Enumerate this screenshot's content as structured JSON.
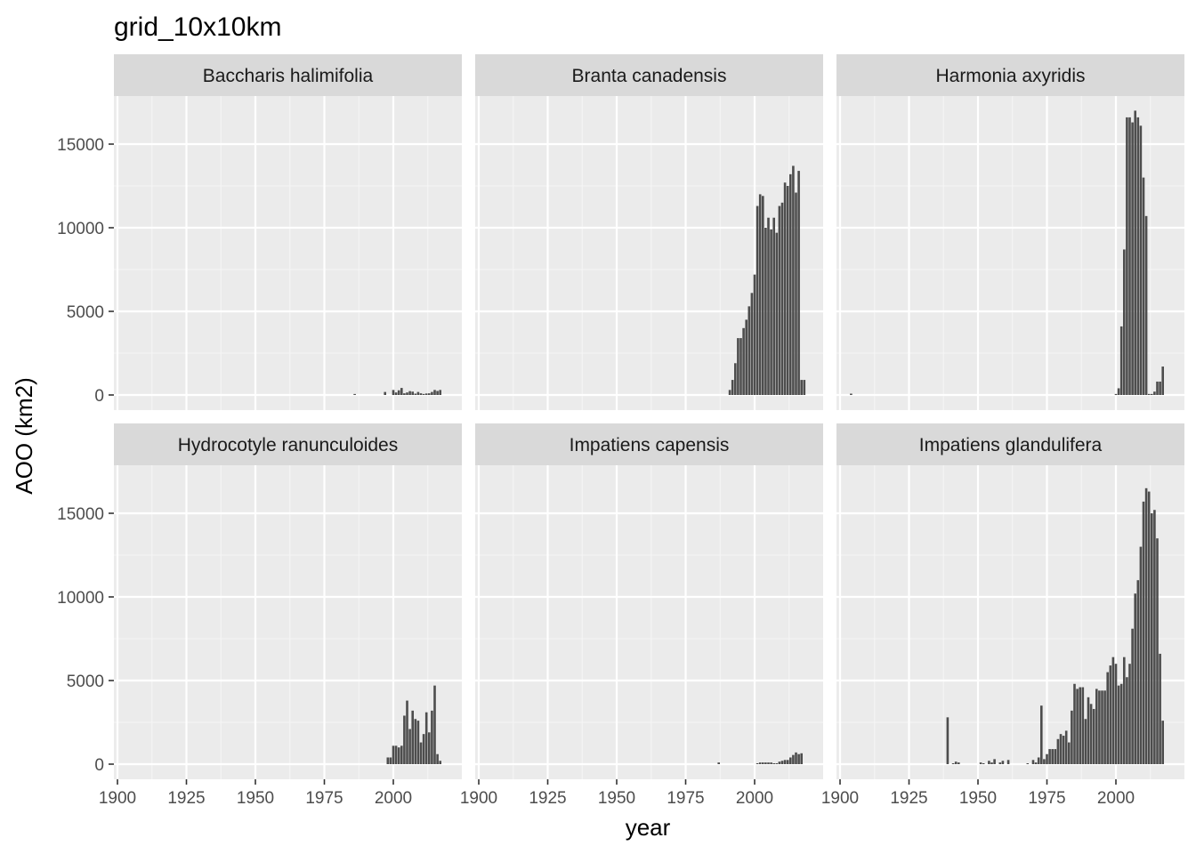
{
  "chart_data": {
    "type": "bar",
    "title": "grid_10x10km",
    "xlabel": "year",
    "ylabel": "AOO (km2)",
    "xlim": [
      1900,
      2020
    ],
    "ylim": [
      0,
      17000
    ],
    "xticks": [
      1900,
      1925,
      1950,
      1975,
      2000
    ],
    "yticks": [
      0,
      5000,
      10000,
      15000
    ],
    "grid": true,
    "layout": "2 rows x 3 columns, shared axes",
    "bar_color": "#4d4d4d",
    "panel_background": "#ebebeb",
    "strip_background": "#d9d9d9",
    "panels": [
      {
        "name": "Baccharis halimifolia",
        "x": [
          1986,
          1997,
          2000,
          2001,
          2002,
          2003,
          2004,
          2005,
          2006,
          2007,
          2008,
          2009,
          2010,
          2011,
          2012,
          2013,
          2014,
          2015,
          2016,
          2017
        ],
        "y": [
          60,
          180,
          300,
          150,
          280,
          420,
          100,
          150,
          230,
          200,
          80,
          180,
          100,
          60,
          90,
          100,
          180,
          300,
          240,
          300
        ]
      },
      {
        "name": "Branta canadensis",
        "x": [
          1991,
          1992,
          1993,
          1994,
          1995,
          1996,
          1997,
          1998,
          1999,
          2000,
          2001,
          2002,
          2003,
          2004,
          2005,
          2006,
          2007,
          2008,
          2009,
          2010,
          2011,
          2012,
          2013,
          2014,
          2015,
          2016,
          2017,
          2018
        ],
        "y": [
          300,
          900,
          1900,
          3400,
          3400,
          4000,
          4500,
          5300,
          6100,
          7200,
          11300,
          12000,
          11900,
          10000,
          10600,
          9900,
          10600,
          9700,
          11300,
          11500,
          12700,
          12500,
          13200,
          13700,
          12100,
          13400,
          900,
          900
        ]
      },
      {
        "name": "Harmonia axyridis",
        "x": [
          1904,
          2000,
          2001,
          2002,
          2003,
          2004,
          2005,
          2006,
          2007,
          2008,
          2009,
          2010,
          2011,
          2012,
          2013,
          2014,
          2015,
          2016,
          2017
        ],
        "y": [
          80,
          60,
          400,
          4100,
          8700,
          16600,
          16600,
          16300,
          17000,
          16600,
          16100,
          13000,
          10700,
          60,
          60,
          200,
          800,
          800,
          1700
        ]
      },
      {
        "name": "Hydrocotyle ranunculoides",
        "x": [
          1998,
          1999,
          2000,
          2001,
          2002,
          2003,
          2004,
          2005,
          2006,
          2007,
          2008,
          2009,
          2010,
          2011,
          2012,
          2013,
          2014,
          2015,
          2016,
          2017
        ],
        "y": [
          400,
          400,
          1100,
          1100,
          1000,
          1100,
          2900,
          3800,
          2100,
          3200,
          2700,
          2600,
          1300,
          1800,
          3100,
          1900,
          3200,
          4700,
          600,
          200
        ]
      },
      {
        "name": "Impatiens capensis",
        "x": [
          1987,
          2001,
          2002,
          2003,
          2004,
          2005,
          2006,
          2007,
          2008,
          2009,
          2010,
          2011,
          2012,
          2013,
          2014,
          2015,
          2016,
          2017
        ],
        "y": [
          100,
          50,
          100,
          100,
          100,
          100,
          100,
          50,
          50,
          150,
          200,
          250,
          250,
          400,
          550,
          700,
          600,
          650
        ]
      },
      {
        "name": "Impatiens glandulifera",
        "x": [
          1939,
          1941,
          1942,
          1943,
          1951,
          1952,
          1954,
          1955,
          1956,
          1958,
          1959,
          1961,
          1968,
          1970,
          1971,
          1972,
          1973,
          1974,
          1975,
          1976,
          1977,
          1978,
          1979,
          1980,
          1981,
          1982,
          1983,
          1984,
          1985,
          1986,
          1987,
          1988,
          1989,
          1990,
          1991,
          1992,
          1993,
          1994,
          1995,
          1996,
          1997,
          1998,
          1999,
          2000,
          2001,
          2002,
          2003,
          2004,
          2005,
          2006,
          2007,
          2008,
          2009,
          2010,
          2011,
          2012,
          2013,
          2014,
          2015,
          2016,
          2017
        ],
        "y": [
          2800,
          50,
          150,
          100,
          100,
          50,
          200,
          100,
          300,
          100,
          200,
          250,
          50,
          250,
          100,
          400,
          3500,
          300,
          600,
          900,
          900,
          900,
          1500,
          1800,
          1700,
          2000,
          1300,
          3200,
          4800,
          4500,
          4600,
          4600,
          2700,
          4000,
          3600,
          3300,
          4500,
          4400,
          4400,
          4400,
          5500,
          5900,
          6400,
          6000,
          4700,
          4800,
          6400,
          5200,
          6000,
          8100,
          10200,
          11000,
          13000,
          15700,
          16500,
          16300,
          15000,
          15200,
          13500,
          6600,
          2600
        ]
      }
    ]
  }
}
